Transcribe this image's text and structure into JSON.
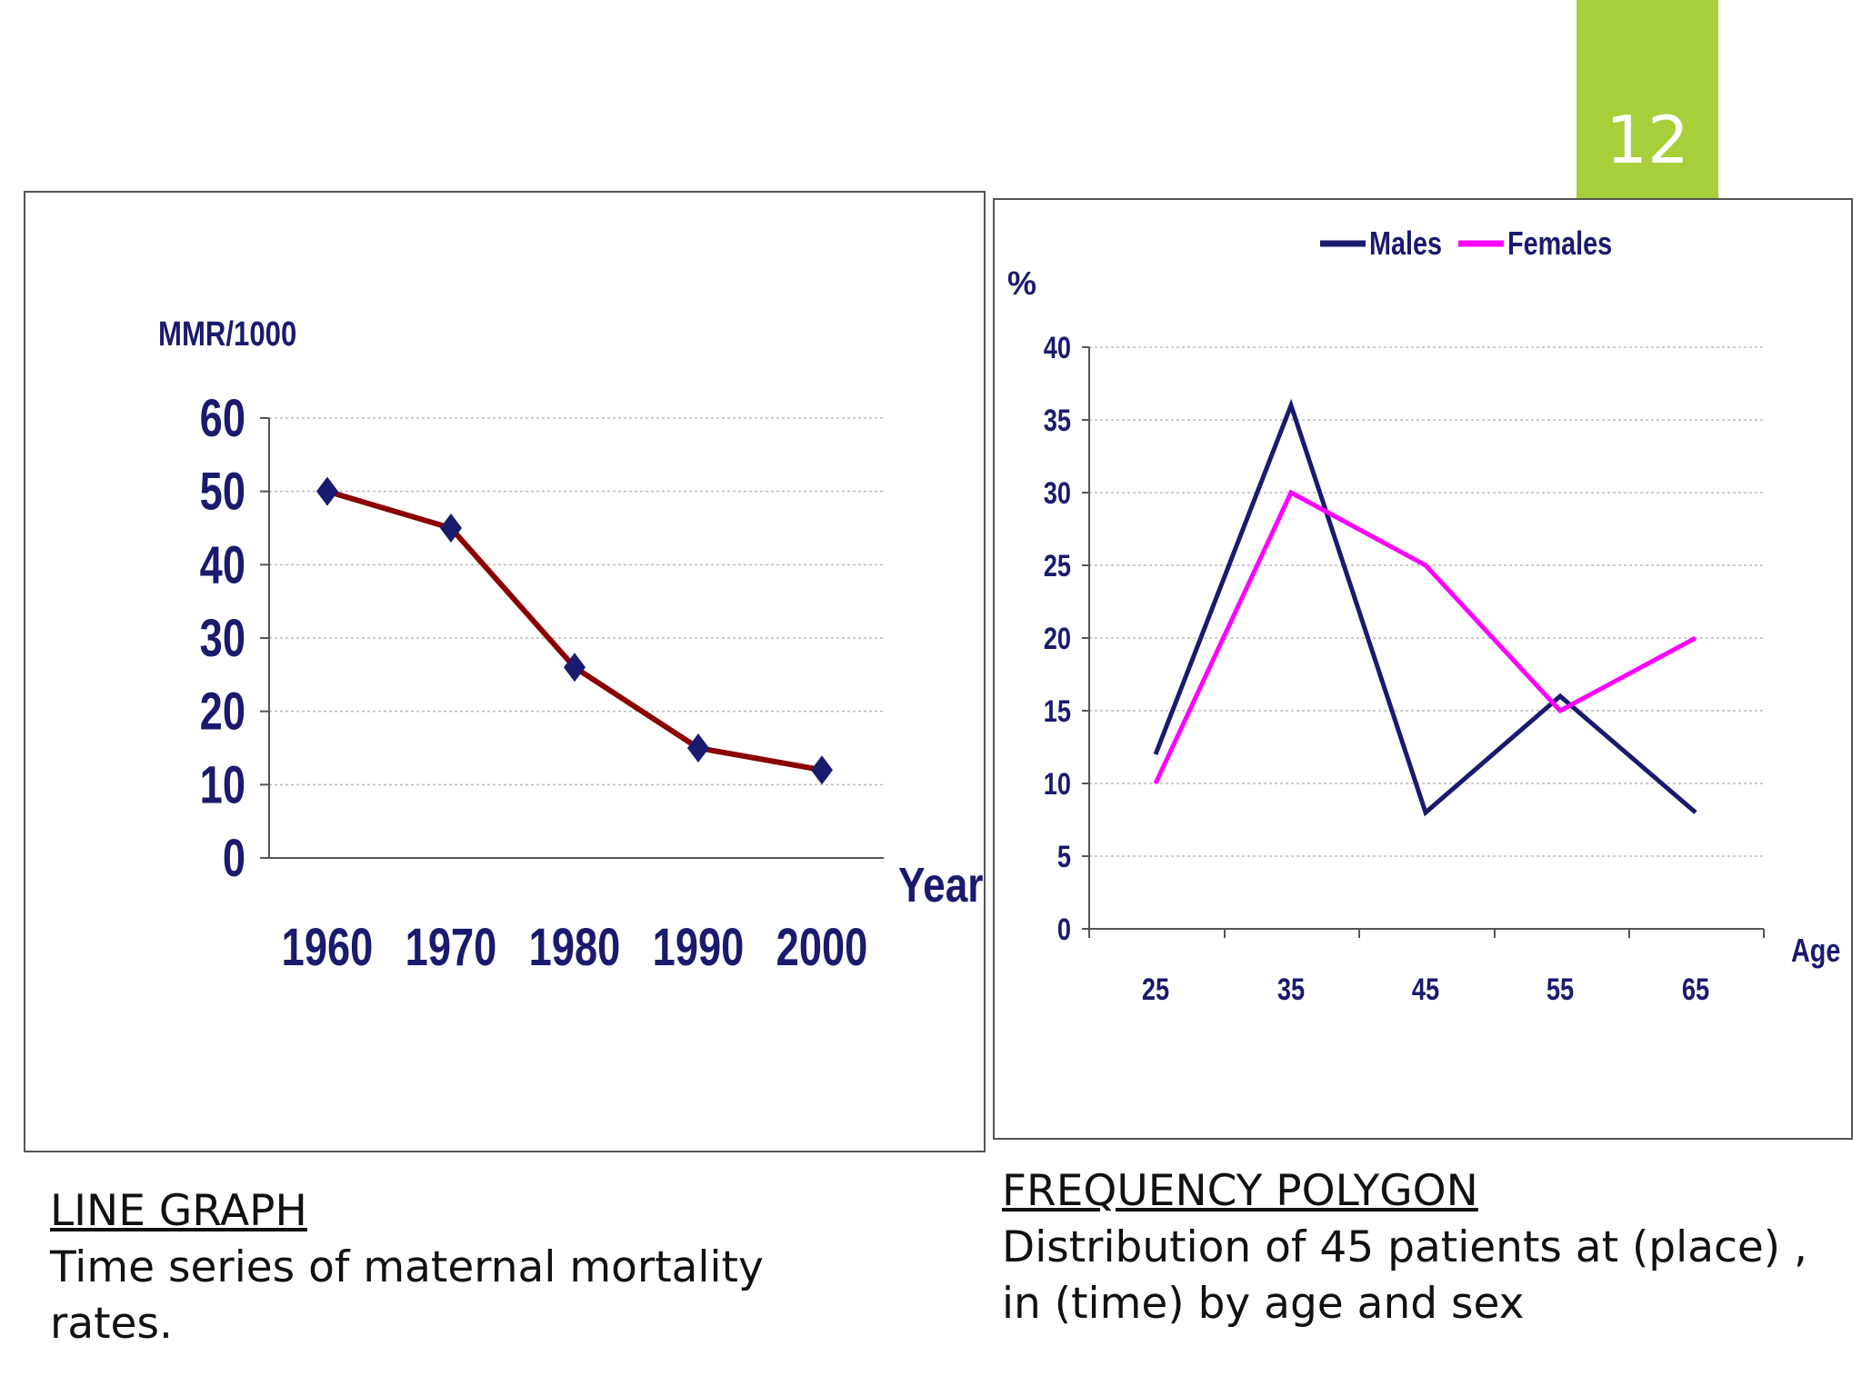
{
  "slide_number": "12",
  "colors": {
    "accent": "#a6cf3a",
    "navy": "#1a1a6e",
    "dark_red": "#8b0000",
    "magenta": "#ff00ff"
  },
  "captions": {
    "left": {
      "title": "LINE GRAPH",
      "lines": [
        "Time series of maternal mortality",
        "rates."
      ]
    },
    "right": {
      "title": "FREQUENCY POLYGON",
      "lines": [
        "Distribution of 45 patients at (place) ,",
        "in (time)  by age and sex"
      ]
    }
  },
  "chart_data": [
    {
      "type": "line",
      "title": "",
      "ylabel": "MMR/1000",
      "xlabel": "Year",
      "categories": [
        "1960",
        "1970",
        "1980",
        "1990",
        "2000"
      ],
      "series": [
        {
          "values": [
            50,
            45,
            26,
            15,
            12
          ],
          "color": "#8b0000",
          "marker": "diamond",
          "marker_color": "#1a1a6e"
        }
      ],
      "ylim": [
        0,
        60
      ],
      "yticks": [
        "0",
        "10",
        "20",
        "30",
        "40",
        "50",
        "60"
      ],
      "grid": true,
      "legend": "none"
    },
    {
      "type": "line",
      "title": "",
      "ylabel": "%",
      "xlabel": "Age",
      "categories": [
        "25",
        "35",
        "45",
        "55",
        "65"
      ],
      "series": [
        {
          "name": "Males",
          "values": [
            12,
            36,
            8,
            16,
            8
          ],
          "color": "#1a1a6e"
        },
        {
          "name": "Females",
          "values": [
            10,
            30,
            25,
            15,
            20
          ],
          "color": "#ff00ff"
        }
      ],
      "ylim": [
        0,
        40
      ],
      "yticks": [
        "0",
        "5",
        "10",
        "15",
        "20",
        "25",
        "30",
        "35",
        "40"
      ],
      "grid": true,
      "legend": "top"
    }
  ]
}
